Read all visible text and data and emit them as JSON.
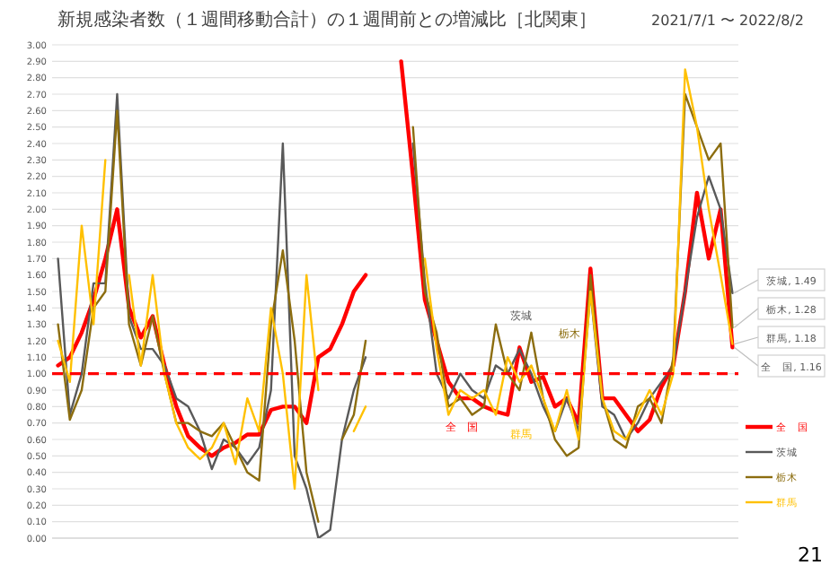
{
  "chart_data": {
    "type": "line",
    "title": "新規感染者数（１週間移動合計）の１週間前との増減比［北関東］",
    "subtitle": "2021/7/1 〜 2022/8/2",
    "categories": [
      null,
      null,
      null,
      null,
      null,
      null,
      null,
      null,
      null,
      null,
      null,
      null,
      null,
      null,
      null,
      null,
      null,
      null,
      null,
      null,
      null,
      null,
      null,
      null,
      null,
      null,
      null,
      null,
      null,
      null,
      null,
      null,
      null,
      null,
      null,
      null,
      null,
      null,
      null,
      null,
      null,
      null,
      null,
      null,
      null,
      null,
      null,
      null,
      null,
      null,
      null,
      null,
      null,
      null,
      null,
      null,
      null,
      null
    ],
    "series": [
      {
        "name": "全　国",
        "color": "#ff0000",
        "values": [
          1.05,
          1.1,
          1.25,
          1.45,
          1.7,
          2.0,
          1.4,
          1.22,
          1.35,
          1.05,
          0.8,
          0.62,
          0.55,
          0.5,
          0.55,
          0.58,
          0.63,
          0.63,
          0.78,
          0.8,
          0.8,
          0.7,
          1.1,
          1.15,
          1.3,
          1.5,
          1.6,
          null,
          null,
          2.9,
          2.2,
          1.45,
          1.2,
          0.95,
          0.85,
          0.85,
          0.8,
          0.77,
          0.75,
          1.16,
          0.95,
          0.98,
          0.8,
          0.85,
          0.7,
          1.64,
          0.85,
          0.85,
          0.75,
          0.65,
          0.72,
          0.92,
          1.05,
          1.5,
          2.1,
          1.7,
          2.0,
          1.16
        ]
      },
      {
        "name": "茨城",
        "color": "#595959",
        "values": [
          1.7,
          0.75,
          1.0,
          1.55,
          1.55,
          2.7,
          1.35,
          1.15,
          1.15,
          1.05,
          0.85,
          0.8,
          0.65,
          0.42,
          0.6,
          0.55,
          0.45,
          0.55,
          0.9,
          2.4,
          0.5,
          0.3,
          0.0,
          0.05,
          0.6,
          0.9,
          1.1,
          null,
          null,
          null,
          2.4,
          1.56,
          1.0,
          0.85,
          1.0,
          0.9,
          0.85,
          1.05,
          1.0,
          1.15,
          1.0,
          0.8,
          0.65,
          0.85,
          0.65,
          1.5,
          0.8,
          0.75,
          0.6,
          0.7,
          0.85,
          0.95,
          1.05,
          1.5,
          1.95,
          2.2,
          2.0,
          1.49
        ]
      },
      {
        "name": "栃木",
        "color": "#8c6d0f",
        "values": [
          1.3,
          0.72,
          0.9,
          1.4,
          1.5,
          2.6,
          1.3,
          1.05,
          1.35,
          1.0,
          0.7,
          0.7,
          0.65,
          0.62,
          0.7,
          0.55,
          0.4,
          0.35,
          1.3,
          1.75,
          1.2,
          0.4,
          0.1,
          null,
          0.6,
          0.75,
          1.2,
          null,
          null,
          null,
          2.5,
          1.5,
          1.25,
          0.8,
          0.85,
          0.75,
          0.8,
          1.3,
          1.0,
          0.9,
          1.25,
          0.85,
          0.6,
          0.5,
          0.55,
          1.6,
          0.85,
          0.6,
          0.55,
          0.8,
          0.85,
          0.7,
          1.1,
          2.7,
          2.5,
          2.3,
          2.4,
          1.28
        ]
      },
      {
        "name": "群馬",
        "color": "#ffc000",
        "values": [
          1.2,
          0.95,
          1.9,
          1.3,
          2.3,
          null,
          1.6,
          1.05,
          1.6,
          1.0,
          0.7,
          0.55,
          0.48,
          0.55,
          0.7,
          0.45,
          0.85,
          0.65,
          1.4,
          1.0,
          0.3,
          1.6,
          0.9,
          null,
          null,
          0.65,
          0.8,
          null,
          null,
          null,
          null,
          1.7,
          1.15,
          0.75,
          0.9,
          0.85,
          0.9,
          0.75,
          1.1,
          0.95,
          1.05,
          0.85,
          0.65,
          0.9,
          0.6,
          1.5,
          0.85,
          0.65,
          0.6,
          0.75,
          0.9,
          0.75,
          1.0,
          2.85,
          2.5,
          2.0,
          1.6,
          1.18
        ]
      }
    ],
    "ylim": [
      0,
      3
    ],
    "yticks": [
      {
        "value": 0,
        "label": "0.00"
      },
      {
        "value": 0.1,
        "label": "0.10"
      },
      {
        "value": 0.2,
        "label": "0.20"
      },
      {
        "value": 0.3,
        "label": "0.30"
      },
      {
        "value": 0.4,
        "label": "0.40"
      },
      {
        "value": 0.5,
        "label": "0.50"
      },
      {
        "value": 0.6,
        "label": "0.60"
      },
      {
        "value": 0.7,
        "label": "0.70"
      },
      {
        "value": 0.8,
        "label": "0.80"
      },
      {
        "value": 0.9,
        "label": "0.90"
      },
      {
        "value": 1,
        "label": "1.00"
      },
      {
        "value": 1.1,
        "label": "1.10"
      },
      {
        "value": 1.2,
        "label": "1.20"
      },
      {
        "value": 1.3,
        "label": "1.30"
      },
      {
        "value": 1.4,
        "label": "1.40"
      },
      {
        "value": 1.5,
        "label": "1.50"
      },
      {
        "value": 1.6,
        "label": "1.60"
      },
      {
        "value": 1.7,
        "label": "1.70"
      },
      {
        "value": 1.8,
        "label": "1.80"
      },
      {
        "value": 1.9,
        "label": "1.90"
      },
      {
        "value": 2,
        "label": "2.00"
      },
      {
        "value": 2.1,
        "label": "2.10"
      },
      {
        "value": 2.2,
        "label": "2.20"
      },
      {
        "value": 2.3,
        "label": "2.30"
      },
      {
        "value": 2.4,
        "label": "2.40"
      },
      {
        "value": 2.5,
        "label": "2.50"
      },
      {
        "value": 2.6,
        "label": "2.60"
      },
      {
        "value": 2.7,
        "label": "2.70"
      },
      {
        "value": 2.8,
        "label": "2.80"
      },
      {
        "value": 2.9,
        "label": "2.90"
      },
      {
        "value": 3,
        "label": "3.00"
      }
    ],
    "tick_labels": "y",
    "grid": "y",
    "legend": "bottom right",
    "ref_lines": [
      {
        "axis": "y",
        "value": 1,
        "color": "#ff0000",
        "line_style": "dashed"
      }
    ],
    "annotations": [
      "茨城, 1.49",
      "栃木, 1.28",
      "群馬, 1.18",
      "全　国, 1.16",
      "茨城",
      "栃木",
      "全　国",
      "群馬",
      "21"
    ]
  }
}
